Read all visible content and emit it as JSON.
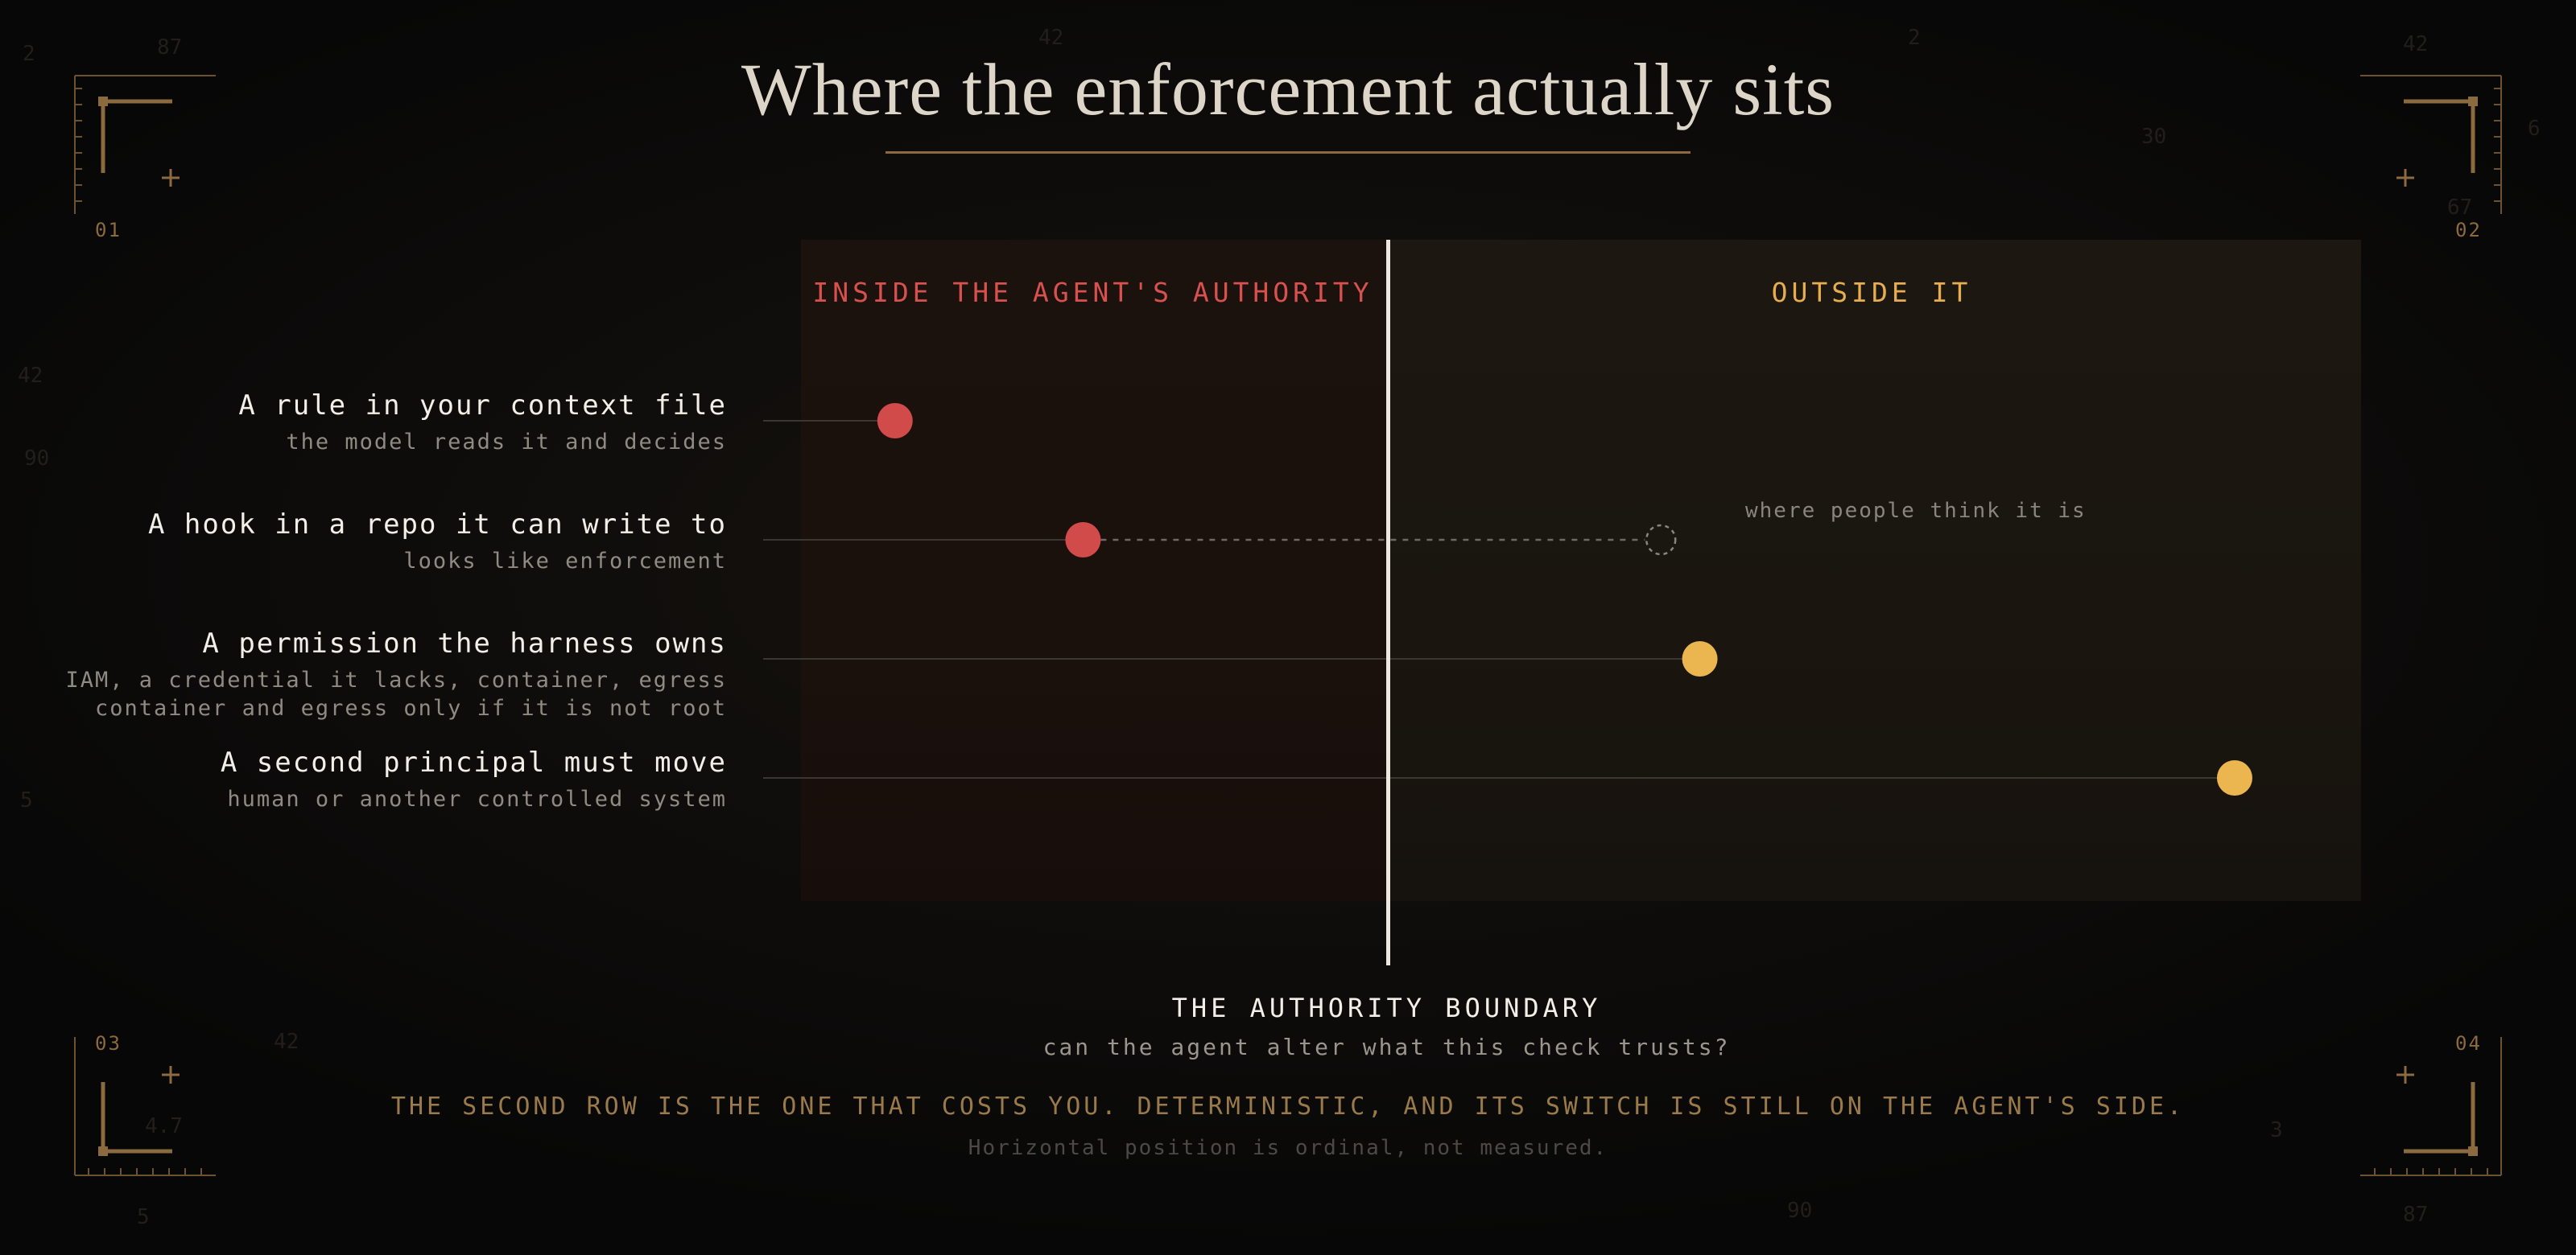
{
  "title": "Where the enforcement actually sits",
  "columns": {
    "inside": "INSIDE THE AGENT'S AUTHORITY",
    "outside": "OUTSIDE IT"
  },
  "rows": [
    {
      "title": "A rule in your context file",
      "subtitle": [
        "the model reads it and decides"
      ],
      "position": 0.16,
      "side": "inside"
    },
    {
      "title": "A hook in a repo it can write to",
      "subtitle": [
        "looks like enforcement"
      ],
      "position": 0.48,
      "side": "inside",
      "perceived_position": 1.28
    },
    {
      "title": "A permission the harness owns",
      "subtitle": [
        "IAM, a credential it lacks, container, egress",
        "container and egress only if it is not root"
      ],
      "position": 1.32,
      "side": "outside"
    },
    {
      "title": "A second principal must move",
      "subtitle": [
        "human or another controlled system"
      ],
      "position": 1.87,
      "side": "outside"
    }
  ],
  "annotation": "where people think it is",
  "boundary": {
    "label": "THE AUTHORITY BOUNDARY",
    "question": "can the agent alter what this check trusts?"
  },
  "callout": "THE SECOND ROW IS THE ONE THAT COSTS YOU. DETERMINISTIC, AND ITS SWITCH IS STILL ON THE AGENT'S SIDE.",
  "footnote": "Horizontal position is ordinal, not measured.",
  "corners": [
    "01",
    "02",
    "03",
    "04"
  ],
  "colors": {
    "inside": "#d24b4b",
    "outside": "#ebb54f",
    "accent": "#8a6a3e",
    "boundary": "#ece8e0"
  }
}
